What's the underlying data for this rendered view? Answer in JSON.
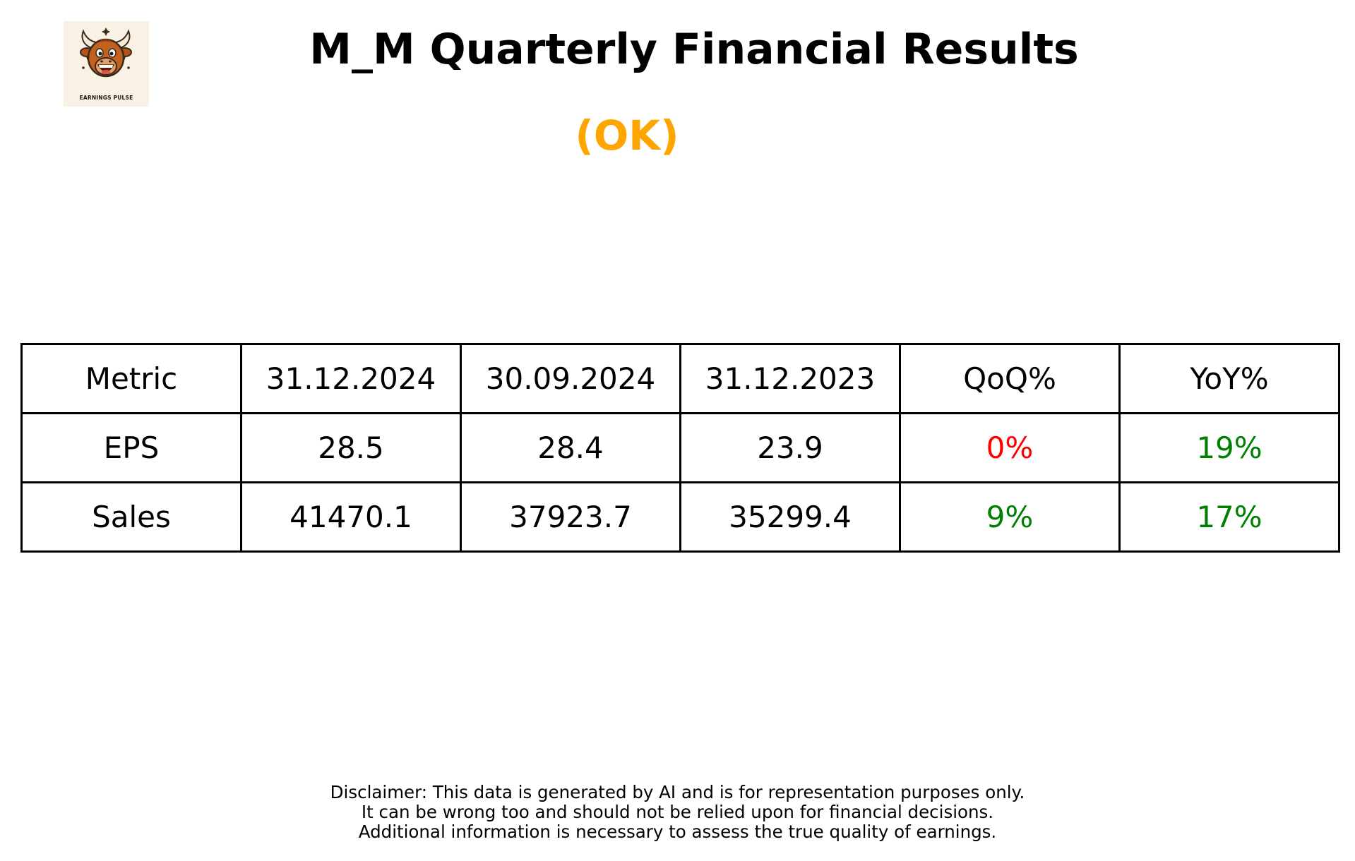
{
  "logo": {
    "text": "EARNINGS PULSE",
    "icon": "bull-mascot-icon"
  },
  "title": "M_M Quarterly Financial Results",
  "status": {
    "text": "(OK)",
    "color": "#ffa500"
  },
  "table": {
    "headers": [
      "Metric",
      "31.12.2024",
      "30.09.2024",
      "31.12.2023",
      "QoQ%",
      "YoY%"
    ],
    "rows": [
      {
        "metric": "EPS",
        "q1": "28.5",
        "q2": "28.4",
        "q3": "23.9",
        "qoq": "0%",
        "qoq_color": "#ff0000",
        "yoy": "19%",
        "yoy_color": "#008000"
      },
      {
        "metric": "Sales",
        "q1": "41470.1",
        "q2": "37923.7",
        "q3": "35299.4",
        "qoq": "9%",
        "qoq_color": "#008000",
        "yoy": "17%",
        "yoy_color": "#008000"
      }
    ]
  },
  "disclaimer": [
    "Disclaimer: This data is generated by AI and is for representation purposes only.",
    "It can be wrong too and should not be relied upon for financial decisions.",
    "Additional information is necessary to assess the true quality of earnings."
  ]
}
